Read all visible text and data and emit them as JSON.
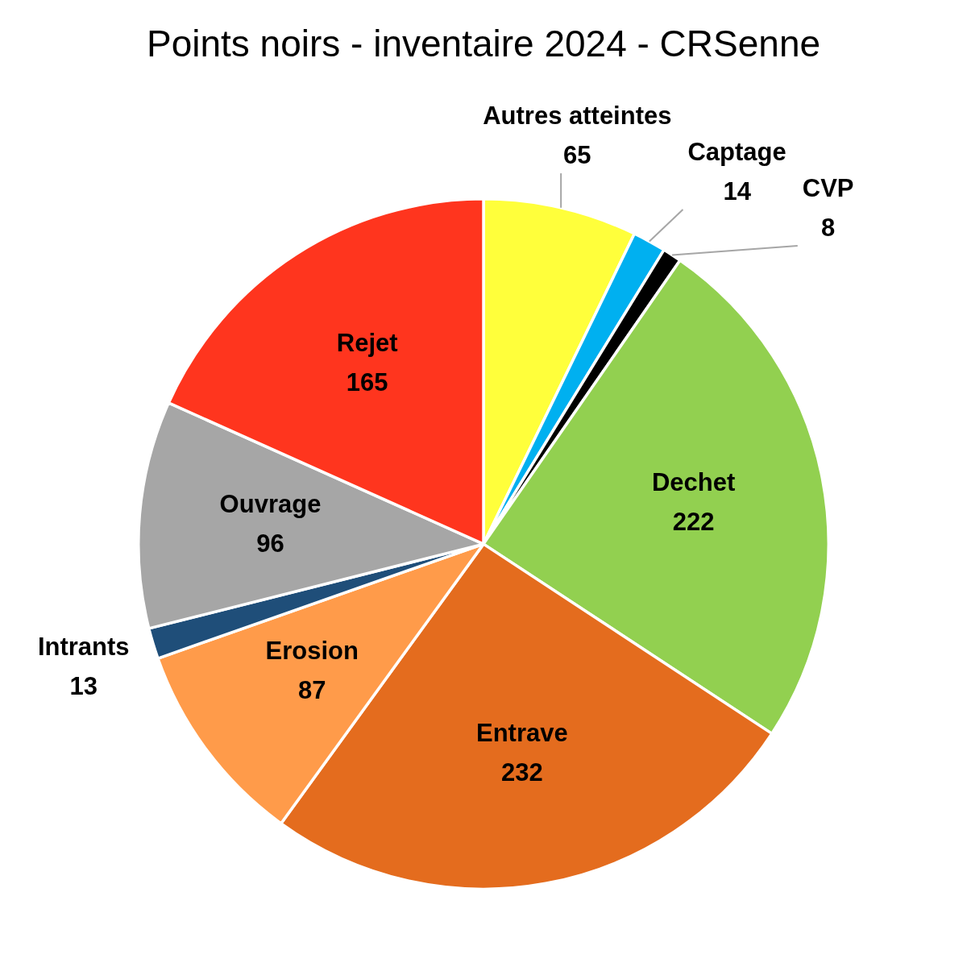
{
  "chart_data": {
    "type": "pie",
    "title": "Points noirs - inventaire 2024 - CRSenne",
    "categories": [
      "Autres atteintes",
      "Captage",
      "CVP",
      "Dechet",
      "Entrave",
      "Erosion",
      "Intrants",
      "Ouvrage",
      "Rejet"
    ],
    "values": [
      65,
      14,
      8,
      222,
      232,
      87,
      13,
      96,
      165
    ],
    "colors": [
      "#ffff3b",
      "#00b0f0",
      "#000000",
      "#92d050",
      "#e46c1e",
      "#ff9b4a",
      "#1f4e79",
      "#a6a6a6",
      "#ff351e"
    ],
    "data_labels": true,
    "legend": false
  }
}
